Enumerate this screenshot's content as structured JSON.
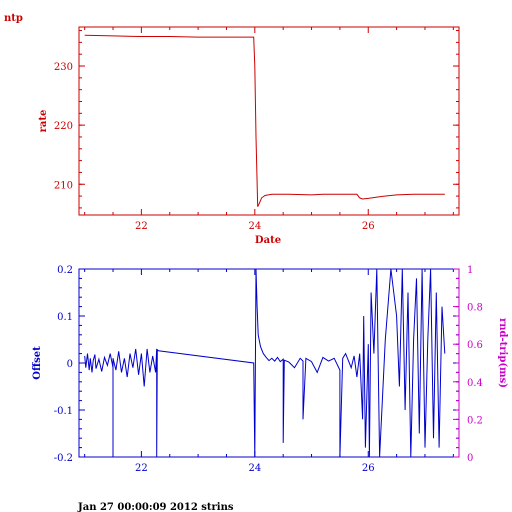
{
  "header": {
    "title": "ntp"
  },
  "footer": {
    "text": "Jan 27 00:00:09 2012 strins"
  },
  "colors": {
    "rate": "#cc0000",
    "offset": "#0000cc",
    "roundtrip": "#cc00cc"
  },
  "chart_data": [
    {
      "type": "line",
      "xlabel": "Date",
      "ylabel": "rate",
      "xlim": [
        20.9,
        27.6
      ],
      "ylim": [
        204.8,
        236.6
      ],
      "xticks": [
        "22",
        "24",
        "26"
      ],
      "xtick_values": [
        22,
        24,
        26
      ],
      "yticks": [
        "210",
        "220",
        "230"
      ],
      "ytick_values": [
        210,
        220,
        230
      ],
      "series": [
        {
          "x": [
            21.0,
            21.5,
            22.0,
            22.5,
            23.0,
            23.5,
            23.98,
            24.0,
            24.02,
            24.05,
            24.08,
            24.12,
            24.18,
            24.3,
            24.6,
            25.0,
            25.2,
            25.5,
            25.8,
            25.85,
            25.9,
            26.0,
            26.2,
            26.5,
            26.8,
            27.0,
            27.35
          ],
          "y": [
            235.2,
            235.1,
            235.0,
            235.0,
            234.9,
            234.9,
            234.9,
            230.0,
            218.0,
            206.2,
            206.8,
            207.7,
            208.1,
            208.3,
            208.3,
            208.2,
            208.3,
            208.3,
            208.3,
            207.7,
            207.5,
            207.6,
            207.9,
            208.2,
            208.3,
            208.3,
            208.3
          ]
        }
      ]
    },
    {
      "type": "line",
      "ylabel": "Offset",
      "y2label": "rnd-trip(ms)",
      "xlim": [
        20.9,
        27.6
      ],
      "ylim": [
        -0.2,
        0.2
      ],
      "y2lim": [
        0,
        1
      ],
      "xticks": [
        "22",
        "24",
        "26"
      ],
      "xtick_values": [
        22,
        24,
        26
      ],
      "yticks": [
        "-0.2",
        "-0.1",
        "0",
        "0.1",
        "0.2"
      ],
      "ytick_values": [
        -0.2,
        -0.1,
        0,
        0.1,
        0.2
      ],
      "y2ticks": [
        "0",
        "0.2",
        "0.4",
        "0.6",
        "0.8",
        "1"
      ],
      "y2tick_values": [
        0,
        0.2,
        0.4,
        0.6,
        0.8,
        1
      ],
      "series": [
        {
          "x": [
            21.0,
            21.02,
            21.05,
            21.08,
            21.1,
            21.13,
            21.15,
            21.18,
            21.2,
            21.25,
            21.3,
            21.35,
            21.4,
            21.45,
            21.5,
            21.5,
            21.5,
            21.55,
            21.6,
            21.65,
            21.7,
            21.75,
            21.8,
            21.85,
            21.9,
            21.95,
            22.0,
            22.05,
            22.1,
            22.15,
            22.2,
            22.25,
            22.27,
            22.27,
            22.28,
            22.3,
            23.98,
            24.0,
            24.02,
            24.04,
            24.06,
            24.1,
            24.15,
            24.2,
            24.25,
            24.3,
            24.35,
            24.4,
            24.45,
            24.5,
            24.5,
            24.52,
            24.6,
            24.7,
            24.8,
            24.85,
            24.85,
            24.9,
            25.0,
            25.1,
            25.2,
            25.3,
            25.4,
            25.5,
            25.5,
            25.55,
            25.6,
            25.7,
            25.75,
            25.8,
            25.85,
            25.9,
            25.92,
            25.95,
            26.0,
            26.02,
            26.05,
            26.1,
            26.15,
            26.2,
            26.3,
            26.4,
            26.5,
            26.55,
            26.6,
            26.65,
            26.7,
            26.75,
            26.8,
            26.85,
            26.9,
            26.95,
            27.0,
            27.05,
            27.1,
            27.15,
            27.2,
            27.25,
            27.3,
            27.35
          ],
          "y": [
            0.015,
            -0.01,
            0.02,
            -0.015,
            0.01,
            -0.02,
            0.005,
            0.018,
            -0.012,
            0.008,
            -0.018,
            0.012,
            -0.005,
            0.02,
            -0.01,
            -0.2,
            0.01,
            -0.015,
            0.025,
            -0.02,
            0.01,
            -0.03,
            0.02,
            -0.01,
            0.03,
            -0.025,
            0.02,
            -0.05,
            0.03,
            -0.02,
            0.015,
            -0.02,
            0.03,
            -0.2,
            0.028,
            0.026,
            0.0,
            -0.2,
            0.2,
            0.12,
            0.06,
            0.035,
            0.02,
            0.012,
            0.005,
            0.01,
            0.004,
            0.012,
            0.003,
            0.008,
            -0.17,
            0.006,
            0.002,
            -0.01,
            0.01,
            0.004,
            -0.12,
            0.01,
            0.003,
            -0.02,
            0.012,
            0.004,
            0.01,
            -0.015,
            -0.2,
            0.01,
            0.02,
            -0.01,
            0.015,
            -0.03,
            0.02,
            -0.12,
            0.1,
            -0.18,
            0.04,
            -0.2,
            0.15,
            0.02,
            0.2,
            -0.2,
            0.05,
            0.2,
            0.1,
            -0.05,
            0.2,
            -0.1,
            0.15,
            -0.2,
            0.05,
            0.18,
            -0.15,
            0.2,
            -0.18,
            0.05,
            0.2,
            -0.16,
            0.15,
            -0.18,
            0.12,
            0.02
          ]
        }
      ]
    }
  ]
}
